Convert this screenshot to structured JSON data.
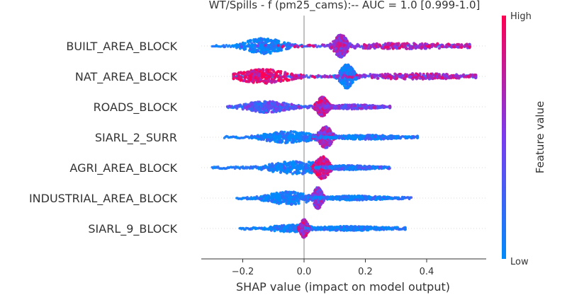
{
  "chart_data": {
    "type": "scatter",
    "subtype": "shap-beeswarm",
    "title": "WT/Spills - f (pm25_cams):--  AUC = 1.0 [0.999-1.0]",
    "xlabel": "SHAP value (impact on model output)",
    "ylabel": "",
    "xlim": [
      -0.34,
      0.6
    ],
    "xticks": [
      -0.2,
      0.0,
      0.2,
      0.4
    ],
    "xtick_labels": [
      "−0.2",
      "0.0",
      "0.2",
      "0.4"
    ],
    "reference_line_x": 0.0,
    "grid": false,
    "colorbar": {
      "label": "Feature value",
      "high_label": "High",
      "low_label": "Low",
      "low_color": "#008bfb",
      "high_color": "#ff0052",
      "placement": "right"
    },
    "features": [
      {
        "name": "BUILT_AREA_BLOCK",
        "min": -0.3,
        "max": 0.54,
        "clusters": [
          {
            "x": -0.13,
            "spread": 0.045,
            "half": 11,
            "mix": 0.02
          },
          {
            "x": 0.12,
            "spread": 0.015,
            "half": 16,
            "mix": 0.6
          },
          {
            "x": 0.32,
            "spread": 0.18,
            "half": 4,
            "mix": 0.7
          }
        ]
      },
      {
        "name": "NAT_AREA_BLOCK",
        "min": -0.23,
        "max": 0.56,
        "clusters": [
          {
            "x": -0.13,
            "spread": 0.06,
            "half": 10,
            "mix": 0.9
          },
          {
            "x": 0.14,
            "spread": 0.015,
            "half": 17,
            "mix": 0.05
          },
          {
            "x": 0.35,
            "spread": 0.15,
            "half": 4,
            "mix": 0.7
          }
        ]
      },
      {
        "name": "ROADS_BLOCK",
        "min": -0.25,
        "max": 0.28,
        "clusters": [
          {
            "x": -0.12,
            "spread": 0.05,
            "half": 8,
            "mix": 0.35
          },
          {
            "x": 0.06,
            "spread": 0.012,
            "half": 14,
            "mix": 0.75
          },
          {
            "x": 0.16,
            "spread": 0.06,
            "half": 3,
            "mix": 0.5
          }
        ]
      },
      {
        "name": "SIARL_2_SURR",
        "min": -0.26,
        "max": 0.37,
        "clusters": [
          {
            "x": -0.05,
            "spread": 0.06,
            "half": 8,
            "mix": 0.05
          },
          {
            "x": 0.07,
            "spread": 0.015,
            "half": 15,
            "mix": 0.6
          },
          {
            "x": 0.2,
            "spread": 0.08,
            "half": 3,
            "mix": 0.1
          }
        ]
      },
      {
        "name": "AGRI_AREA_BLOCK",
        "min": -0.3,
        "max": 0.28,
        "clusters": [
          {
            "x": -0.02,
            "spread": 0.07,
            "half": 9,
            "mix": 0.05
          },
          {
            "x": 0.06,
            "spread": 0.015,
            "half": 16,
            "mix": 0.85
          },
          {
            "x": 0.15,
            "spread": 0.06,
            "half": 3,
            "mix": 0.2
          }
        ]
      },
      {
        "name": "INDUSTRIAL_AREA_BLOCK",
        "min": -0.22,
        "max": 0.35,
        "clusters": [
          {
            "x": -0.05,
            "spread": 0.05,
            "half": 9,
            "mix": 0.02
          },
          {
            "x": 0.045,
            "spread": 0.01,
            "half": 15,
            "mix": 0.55
          },
          {
            "x": 0.17,
            "spread": 0.07,
            "half": 3,
            "mix": 0.05
          }
        ]
      },
      {
        "name": "SIARL_9_BLOCK",
        "min": -0.21,
        "max": 0.33,
        "clusters": [
          {
            "x": -0.04,
            "spread": 0.05,
            "half": 5,
            "mix": 0.02
          },
          {
            "x": 0.0,
            "spread": 0.008,
            "half": 13,
            "mix": 0.7
          },
          {
            "x": 0.15,
            "spread": 0.08,
            "half": 3,
            "mix": 0.05
          }
        ]
      }
    ]
  }
}
